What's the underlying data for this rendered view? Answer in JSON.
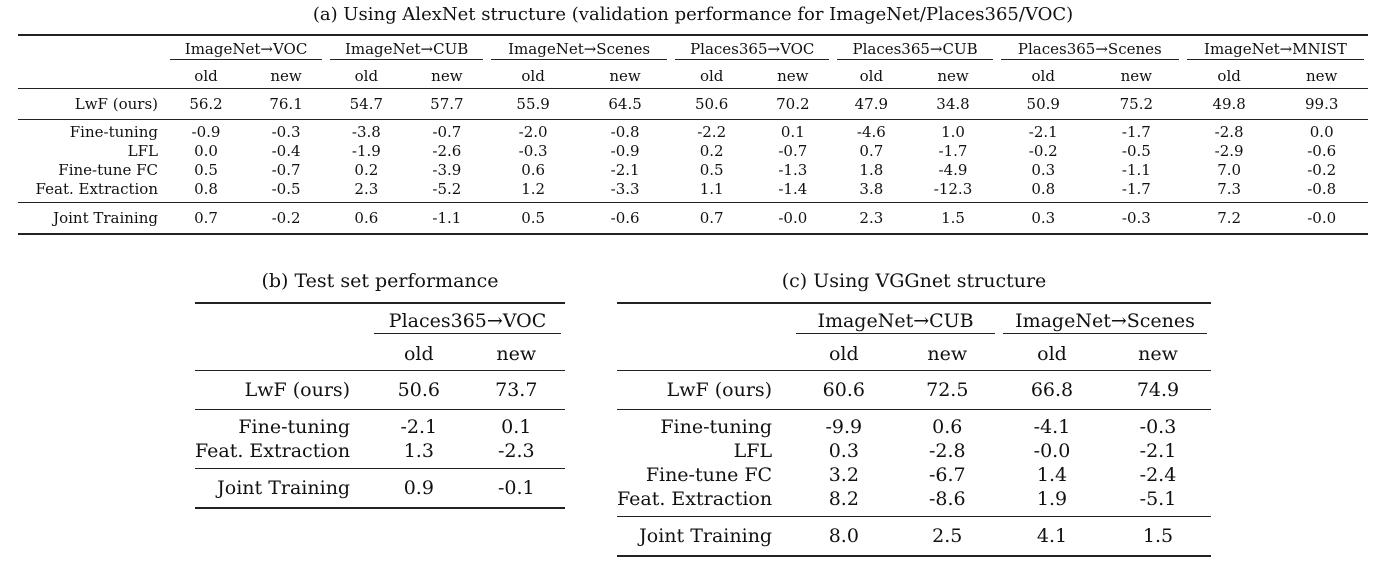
{
  "table_a": {
    "caption": "(a)  Using AlexNet structure (validation performance for ImageNet/Places365/VOC)",
    "groups": [
      "ImageNet→VOC",
      "ImageNet→CUB",
      "ImageNet→Scenes",
      "Places365→VOC",
      "Places365→CUB",
      "Places365→Scenes",
      "ImageNet→MNIST"
    ],
    "sub_old": "old",
    "sub_new": "new",
    "rows": [
      {
        "label": "LwF (ours)",
        "values": [
          "56.2",
          "76.1",
          "54.7",
          "57.7",
          "55.9",
          "64.5",
          "50.6",
          "70.2",
          "47.9",
          "34.8",
          "50.9",
          "75.2",
          "49.8",
          "99.3"
        ]
      },
      {
        "label": "Fine-tuning",
        "values": [
          "-0.9",
          "-0.3",
          "-3.8",
          "-0.7",
          "-2.0",
          "-0.8",
          "-2.2",
          "0.1",
          "-4.6",
          "1.0",
          "-2.1",
          "-1.7",
          "-2.8",
          "0.0"
        ]
      },
      {
        "label": "LFL",
        "values": [
          "0.0",
          "-0.4",
          "-1.9",
          "-2.6",
          "-0.3",
          "-0.9",
          "0.2",
          "-0.7",
          "0.7",
          "-1.7",
          "-0.2",
          "-0.5",
          "-2.9",
          "-0.6"
        ]
      },
      {
        "label": "Fine-tune FC",
        "values": [
          "0.5",
          "-0.7",
          "0.2",
          "-3.9",
          "0.6",
          "-2.1",
          "0.5",
          "-1.3",
          "1.8",
          "-4.9",
          "0.3",
          "-1.1",
          "7.0",
          "-0.2"
        ]
      },
      {
        "label": "Feat. Extraction",
        "values": [
          "0.8",
          "-0.5",
          "2.3",
          "-5.2",
          "1.2",
          "-3.3",
          "1.1",
          "-1.4",
          "3.8",
          "-12.3",
          "0.8",
          "-1.7",
          "7.3",
          "-0.8"
        ]
      },
      {
        "label": "Joint Training",
        "values": [
          "0.7",
          "-0.2",
          "0.6",
          "-1.1",
          "0.5",
          "-0.6",
          "0.7",
          "-0.0",
          "2.3",
          "1.5",
          "0.3",
          "-0.3",
          "7.2",
          "-0.0"
        ]
      }
    ]
  },
  "table_b": {
    "caption": "(b)  Test set performance",
    "groups": [
      "Places365→VOC"
    ],
    "sub_old": "old",
    "sub_new": "new",
    "rows": [
      {
        "label": "LwF (ours)",
        "values": [
          "50.6",
          "73.7"
        ]
      },
      {
        "label": "Fine-tuning",
        "values": [
          "-2.1",
          "0.1"
        ]
      },
      {
        "label": "Feat. Extraction",
        "values": [
          "1.3",
          "-2.3"
        ]
      },
      {
        "label": "Joint Training",
        "values": [
          "0.9",
          "-0.1"
        ]
      }
    ]
  },
  "table_c": {
    "caption": "(c)  Using VGGnet structure",
    "groups": [
      "ImageNet→CUB",
      "ImageNet→Scenes"
    ],
    "sub_old": "old",
    "sub_new": "new",
    "rows": [
      {
        "label": "LwF (ours)",
        "values": [
          "60.6",
          "72.5",
          "66.8",
          "74.9"
        ]
      },
      {
        "label": "Fine-tuning",
        "values": [
          "-9.9",
          "0.6",
          "-4.1",
          "-0.3"
        ]
      },
      {
        "label": "LFL",
        "values": [
          "0.3",
          "-2.8",
          "-0.0",
          "-2.1"
        ]
      },
      {
        "label": "Fine-tune FC",
        "values": [
          "3.2",
          "-6.7",
          "1.4",
          "-2.4"
        ]
      },
      {
        "label": "Feat. Extraction",
        "values": [
          "8.2",
          "-8.6",
          "1.9",
          "-5.1"
        ]
      },
      {
        "label": "Joint Training",
        "values": [
          "8.0",
          "2.5",
          "4.1",
          "1.5"
        ]
      }
    ]
  }
}
